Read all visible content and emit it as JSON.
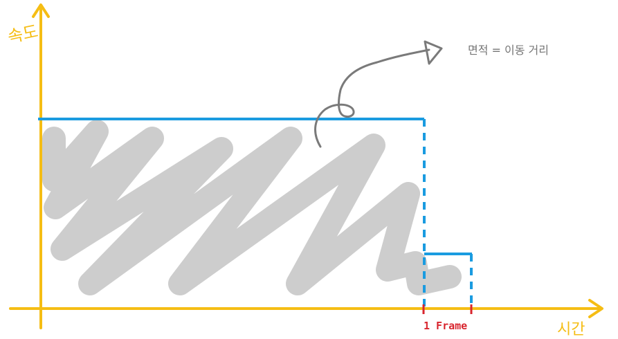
{
  "labels": {
    "y_axis": "속도",
    "x_axis": "시간",
    "tick": "1 Frame",
    "annotation": "면적 = 이동 거리"
  },
  "colors": {
    "axis": "#f5bd14",
    "speed_line": "#1a9be0",
    "shading": "#bdbdbd",
    "arrow": "#7a7a7a",
    "annotation": "#757575",
    "tick": "#d8252e"
  }
}
